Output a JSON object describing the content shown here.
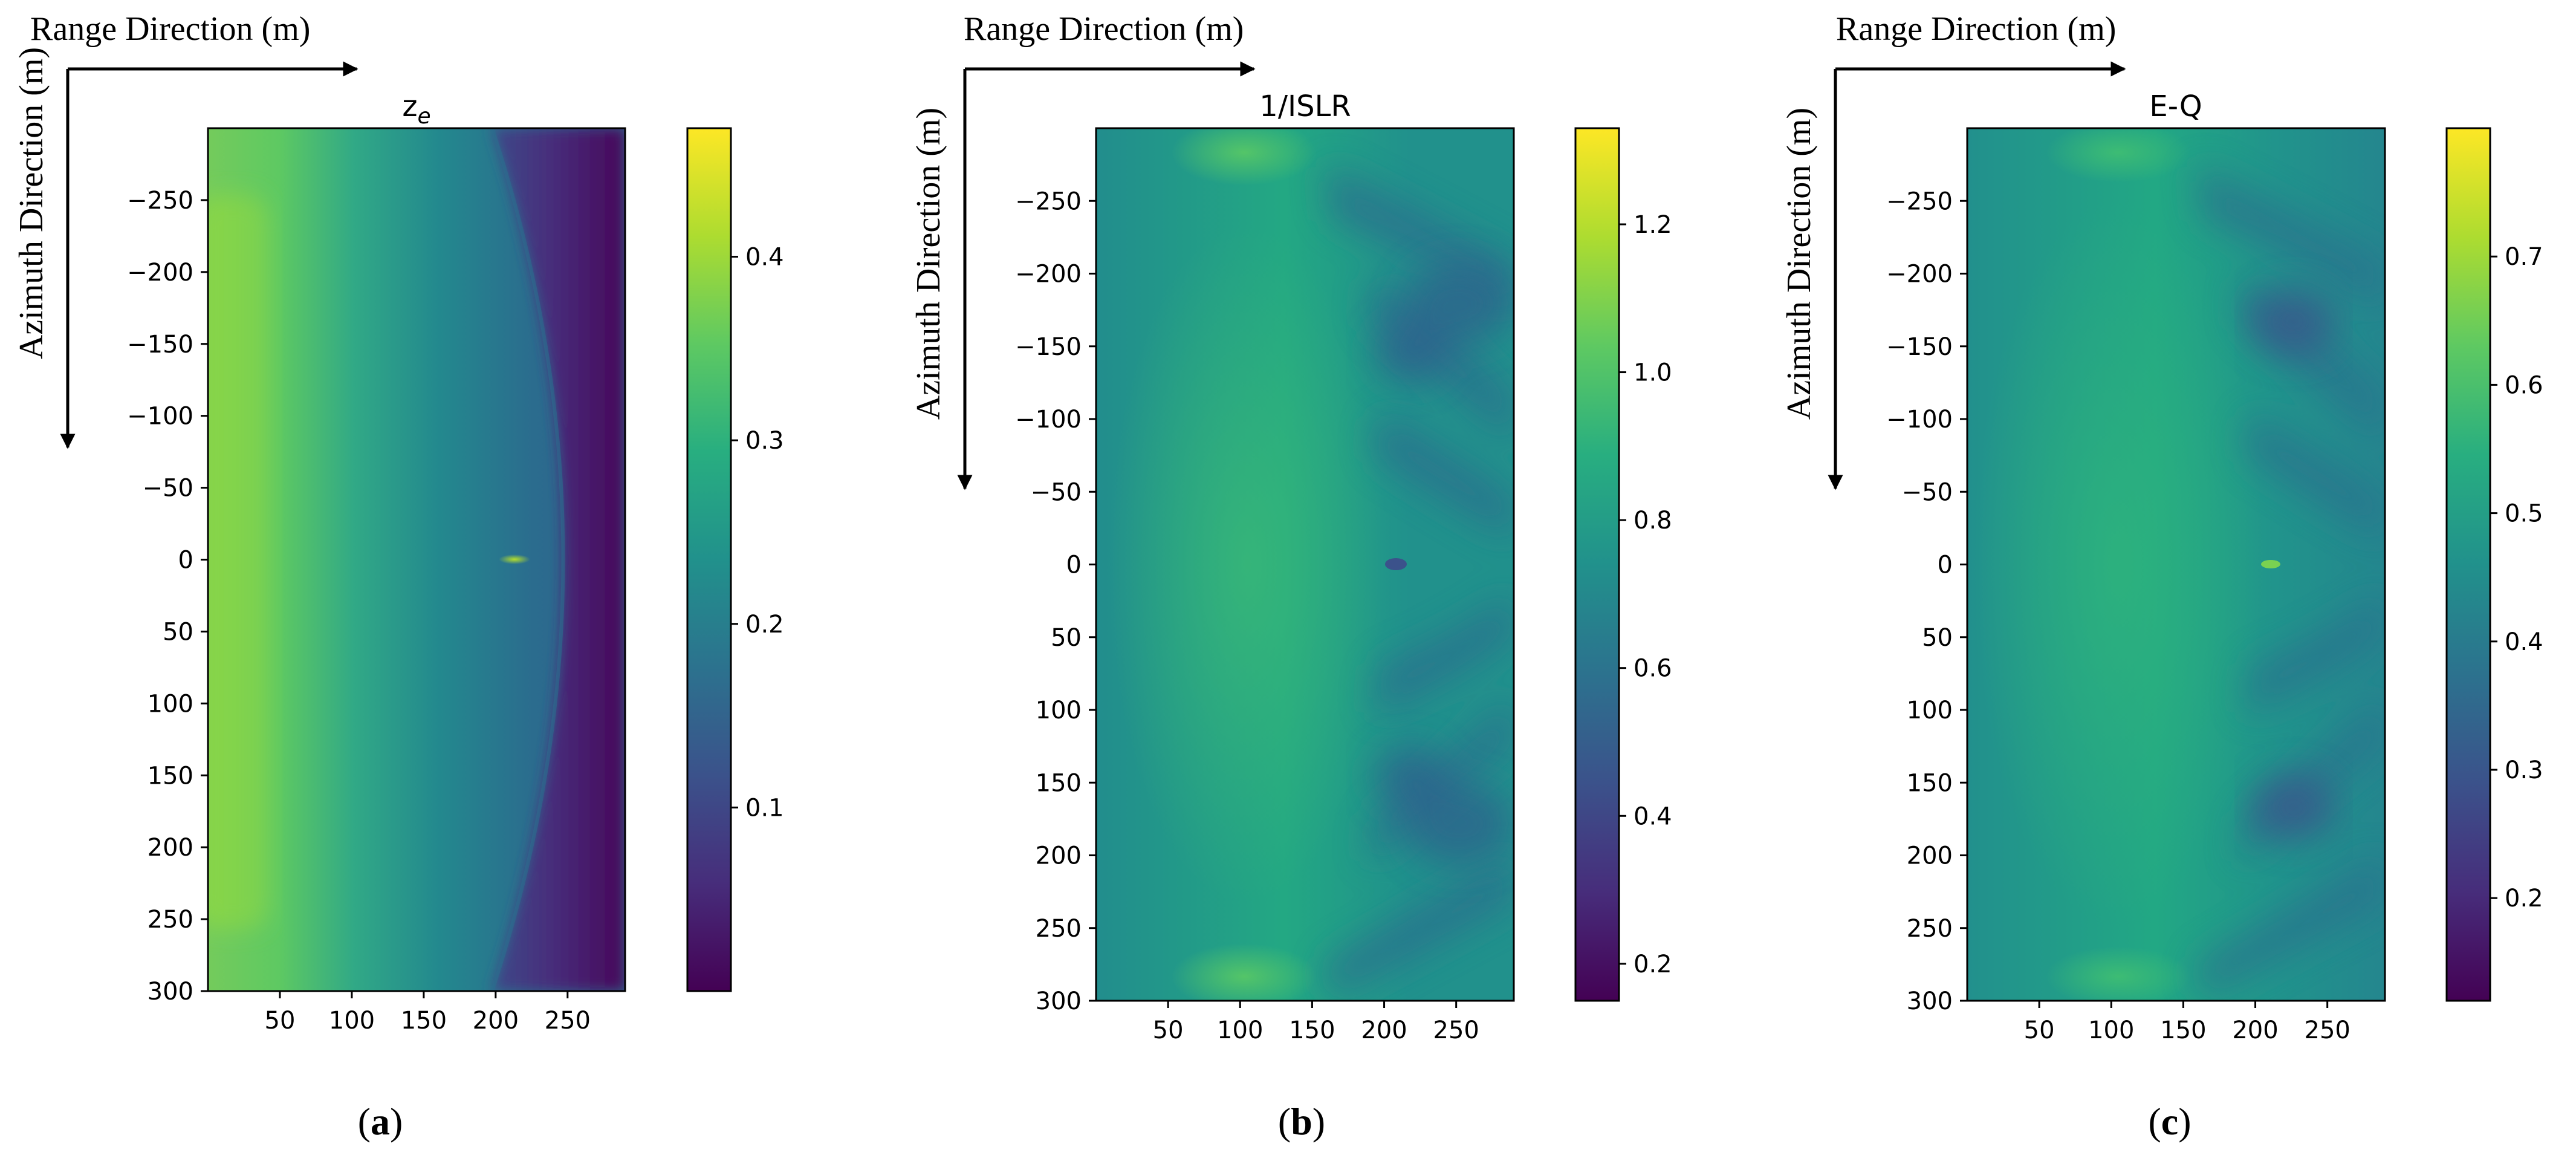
{
  "figure": {
    "range_label": "Range Direction (m)",
    "azimuth_label": "Azimuth Direction (m)"
  },
  "chart_data": [
    {
      "type": "heatmap",
      "panel_label": "a",
      "title": "z_e",
      "title_main": "z",
      "title_sub": "e",
      "xlabel": "Range Direction (m)",
      "ylabel": "Azimuth Direction (m)",
      "x_range": [
        0,
        290
      ],
      "y_range": [
        -300,
        300
      ],
      "y_inverted": true,
      "x_ticks": [
        50,
        100,
        150,
        200,
        250
      ],
      "x_tick_labels": [
        "50",
        "100",
        "150",
        "200",
        "250"
      ],
      "y_ticks": [
        -250,
        -200,
        -150,
        -100,
        -50,
        0,
        50,
        100,
        150,
        200,
        250,
        300
      ],
      "y_tick_labels": [
        "−250",
        "−200",
        "−150",
        "−100",
        "−50",
        "0",
        "50",
        "100",
        "150",
        "200",
        "250",
        "300"
      ],
      "colorbar_range": [
        0.0,
        0.47
      ],
      "colorbar_ticks": [
        0.1,
        0.2,
        0.3,
        0.4
      ],
      "colorbar_tick_labels": [
        "0.1",
        "0.2",
        "0.3",
        "0.4"
      ],
      "colormap": "viridis"
    },
    {
      "type": "heatmap",
      "panel_label": "b",
      "title": "1/ISLR",
      "xlabel": "Range Direction (m)",
      "ylabel": "Azimuth Direction (m)",
      "x_range": [
        0,
        290
      ],
      "y_range": [
        -300,
        300
      ],
      "y_inverted": true,
      "x_ticks": [
        50,
        100,
        150,
        200,
        250
      ],
      "x_tick_labels": [
        "50",
        "100",
        "150",
        "200",
        "250"
      ],
      "y_ticks": [
        -250,
        -200,
        -150,
        -100,
        -50,
        0,
        50,
        100,
        150,
        200,
        250,
        300
      ],
      "y_tick_labels": [
        "−250",
        "−200",
        "−150",
        "−100",
        "−50",
        "0",
        "50",
        "100",
        "150",
        "200",
        "250",
        "300"
      ],
      "colorbar_range": [
        0.15,
        1.33
      ],
      "colorbar_ticks": [
        0.2,
        0.4,
        0.6,
        0.8,
        1.0,
        1.2
      ],
      "colorbar_tick_labels": [
        "0.2",
        "0.4",
        "0.6",
        "0.8",
        "1.0",
        "1.2"
      ],
      "colormap": "viridis"
    },
    {
      "type": "heatmap",
      "panel_label": "c",
      "title": "E-Q",
      "xlabel": "Range Direction (m)",
      "ylabel": "Azimuth Direction (m)",
      "x_range": [
        0,
        290
      ],
      "y_range": [
        -300,
        300
      ],
      "y_inverted": true,
      "x_ticks": [
        50,
        100,
        150,
        200,
        250
      ],
      "x_tick_labels": [
        "50",
        "100",
        "150",
        "200",
        "250"
      ],
      "y_ticks": [
        -250,
        -200,
        -150,
        -100,
        -50,
        0,
        50,
        100,
        150,
        200,
        250,
        300
      ],
      "y_tick_labels": [
        "−250",
        "−200",
        "−150",
        "−100",
        "−50",
        "0",
        "50",
        "100",
        "150",
        "200",
        "250",
        "300"
      ],
      "colorbar_range": [
        0.12,
        0.8
      ],
      "colorbar_ticks": [
        0.2,
        0.3,
        0.4,
        0.5,
        0.6,
        0.7
      ],
      "colorbar_tick_labels": [
        "0.2",
        "0.3",
        "0.4",
        "0.5",
        "0.6",
        "0.7"
      ],
      "colormap": "viridis"
    }
  ]
}
